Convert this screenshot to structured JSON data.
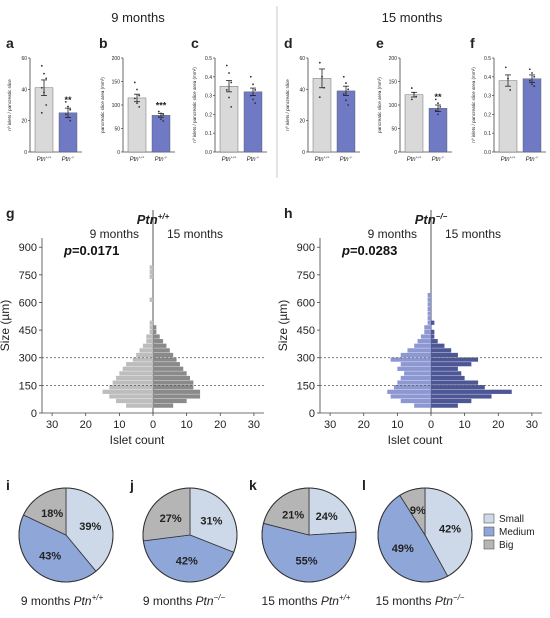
{
  "headers": {
    "left": "9 months",
    "right": "15 months"
  },
  "colors": {
    "wt_bar": "#d9d9d9",
    "ko_bar": "#6f79c4",
    "hist_light": "#bdbdbd",
    "hist_dark": "#8a8a8a",
    "hist_ko_light": "#8d97d2",
    "hist_ko_dark": "#4d5796",
    "pie_small": "#cdd9e8",
    "pie_medium": "#8ea6d8",
    "pie_big": "#b5b5b5"
  },
  "chart_data": [
    {
      "id": "a",
      "panel_label": "a",
      "type": "bar",
      "ylabel": "nº islets / pancreatic slice",
      "categories": [
        "Ptn+/+",
        "Ptn-/-"
      ],
      "cat_base": [
        "Ptn",
        "Ptn"
      ],
      "cat_sup": [
        "+/+",
        "-/-"
      ],
      "values": [
        41,
        25
      ],
      "errors": [
        5,
        3
      ],
      "ylim": [
        0,
        60
      ],
      "yticks": [
        0,
        20,
        40,
        60
      ],
      "points": [
        [
          55,
          50,
          47,
          41,
          38,
          30,
          25
        ],
        [
          32,
          29,
          27,
          24,
          22,
          20
        ]
      ],
      "significance": "**"
    },
    {
      "id": "b",
      "panel_label": "b",
      "type": "bar",
      "ylabel": "pancreatic slice area (mm²)",
      "categories": [
        "Ptn+/+",
        "Ptn-/-"
      ],
      "cat_base": [
        "Ptn",
        "Ptn"
      ],
      "cat_sup": [
        "+/+",
        "-/-"
      ],
      "values": [
        115,
        78
      ],
      "errors": [
        8,
        4
      ],
      "ylim": [
        0,
        200
      ],
      "yticks": [
        0,
        50,
        100,
        150,
        200
      ],
      "points": [
        [
          148,
          133,
          120,
          114,
          104,
          96
        ],
        [
          86,
          82,
          79,
          74,
          70,
          66
        ]
      ],
      "significance": "***"
    },
    {
      "id": "c",
      "panel_label": "c",
      "type": "bar",
      "ylabel": "nº islets / pancreatic slice area (mm²)",
      "categories": [
        "Ptn+/+",
        "Ptn-/-"
      ],
      "cat_base": [
        "Ptn",
        "Ptn"
      ],
      "cat_sup": [
        "+/+",
        "-/-"
      ],
      "values": [
        0.35,
        0.32
      ],
      "errors": [
        0.03,
        0.02
      ],
      "ylim": [
        0,
        0.5
      ],
      "yticks": [
        0.0,
        0.1,
        0.2,
        0.3,
        0.4,
        0.5
      ],
      "points": [
        [
          0.46,
          0.42,
          0.37,
          0.33,
          0.29,
          0.24
        ],
        [
          0.4,
          0.36,
          0.33,
          0.3,
          0.28,
          0.26
        ]
      ],
      "significance": ""
    },
    {
      "id": "d",
      "panel_label": "d",
      "type": "bar",
      "ylabel": "nº islets / pancreatic slice",
      "categories": [
        "Ptn+/+",
        "Ptn-/-"
      ],
      "cat_base": [
        "Ptn",
        "Ptn"
      ],
      "cat_sup": [
        "+/+",
        "-/-"
      ],
      "values": [
        47,
        39
      ],
      "errors": [
        6,
        3
      ],
      "ylim": [
        0,
        60
      ],
      "yticks": [
        0,
        20,
        40,
        60
      ],
      "points": [
        [
          57,
          48,
          41,
          35
        ],
        [
          48,
          44,
          40,
          37,
          33,
          30
        ]
      ],
      "significance": ""
    },
    {
      "id": "e",
      "panel_label": "e",
      "type": "bar",
      "ylabel": "pancreatic slice area (mm²)",
      "categories": [
        "Ptn+/+",
        "Ptn-/-"
      ],
      "cat_base": [
        "Ptn",
        "Ptn"
      ],
      "cat_sup": [
        "+/+",
        "-/-"
      ],
      "values": [
        122,
        93
      ],
      "errors": [
        5,
        7
      ],
      "ylim": [
        0,
        200
      ],
      "yticks": [
        0,
        50,
        100,
        150,
        200
      ],
      "points": [
        [
          136,
          126,
          118,
          112
        ],
        [
          112,
          104,
          96,
          88,
          80
        ]
      ],
      "significance": "**"
    },
    {
      "id": "f",
      "panel_label": "f",
      "type": "bar",
      "ylabel": "nº islets / pancreatic slice area (mm²)",
      "categories": [
        "Ptn+/+",
        "Ptn-/-"
      ],
      "cat_base": [
        "Ptn",
        "Ptn"
      ],
      "cat_sup": [
        "+/+",
        "-/-"
      ],
      "values": [
        0.38,
        0.39
      ],
      "errors": [
        0.03,
        0.02
      ],
      "ylim": [
        0,
        0.5
      ],
      "yticks": [
        0.0,
        0.1,
        0.2,
        0.3,
        0.4,
        0.5
      ],
      "points": [
        [
          0.45,
          0.39,
          0.33
        ],
        [
          0.44,
          0.42,
          0.4,
          0.38,
          0.36,
          0.35
        ]
      ],
      "significance": ""
    },
    {
      "id": "g",
      "panel_label": "g",
      "type": "bar",
      "orientation": "horizontal-mirrored",
      "title": "Ptn",
      "title_sup": "+/+",
      "left_label": "9 months",
      "right_label": "15 months",
      "pvalue_p": "p",
      "pvalue_rest": "=0.0171",
      "ylabel": "Size (µm)",
      "xlabel": "Islet count",
      "ylim": [
        0,
        950
      ],
      "yticks": [
        0,
        150,
        300,
        450,
        600,
        750,
        900
      ],
      "xlim": [
        -33,
        33
      ],
      "xtick_values": [
        -30,
        -20,
        -10,
        0,
        10,
        20,
        30
      ],
      "xtick_labels": [
        "30",
        "20",
        "10",
        "0",
        "10",
        "20",
        "30"
      ],
      "dashed_lines": [
        150,
        300
      ],
      "bin_centers": [
        40,
        65,
        90,
        115,
        140,
        165,
        190,
        215,
        240,
        265,
        290,
        315,
        340,
        365,
        390,
        415,
        440,
        465,
        490,
        515,
        540,
        565,
        590,
        615,
        640,
        665,
        690,
        715,
        740,
        765,
        790
      ],
      "series": [
        {
          "name": "9 months",
          "values": [
            8,
            11,
            13,
            15,
            13,
            12,
            11,
            10,
            9,
            8,
            6,
            5,
            4,
            3,
            2,
            2,
            1,
            1,
            1,
            0,
            0,
            0,
            0,
            1,
            0,
            0,
            0,
            0,
            1,
            1,
            1
          ]
        },
        {
          "name": "15 months",
          "values": [
            6,
            10,
            14,
            14,
            12,
            12,
            11,
            10,
            9,
            8,
            7,
            6,
            5,
            4,
            3,
            2,
            1,
            1,
            0,
            0,
            0,
            0,
            0,
            0,
            0,
            0,
            0,
            0,
            0,
            0,
            0
          ]
        }
      ]
    },
    {
      "id": "h",
      "panel_label": "h",
      "type": "bar",
      "orientation": "horizontal-mirrored",
      "title": "Ptn",
      "title_sup": "−/−",
      "left_label": "9 months",
      "right_label": "15 months",
      "pvalue_p": "p",
      "pvalue_rest": "=0.0283",
      "ylabel": "Size (µm)",
      "xlabel": "Islet count",
      "ylim": [
        0,
        950
      ],
      "yticks": [
        0,
        150,
        300,
        450,
        600,
        750,
        900
      ],
      "xlim": [
        -33,
        33
      ],
      "xtick_values": [
        -30,
        -20,
        -10,
        0,
        10,
        20,
        30
      ],
      "xtick_labels": [
        "30",
        "20",
        "10",
        "0",
        "10",
        "20",
        "30"
      ],
      "dashed_lines": [
        150,
        300
      ],
      "bin_centers": [
        40,
        65,
        90,
        115,
        140,
        165,
        190,
        215,
        240,
        265,
        290,
        315,
        340,
        365,
        390,
        415,
        440,
        465,
        490,
        515,
        540,
        565,
        590,
        615,
        640
      ],
      "series": [
        {
          "name": "9 months",
          "values": [
            5,
            9,
            12,
            13,
            11,
            10,
            9,
            8,
            10,
            9,
            12,
            9,
            7,
            5,
            4,
            3,
            2,
            2,
            1,
            1,
            1,
            1,
            1,
            1,
            1
          ]
        },
        {
          "name": "15 months",
          "values": [
            8,
            12,
            18,
            24,
            16,
            14,
            10,
            9,
            8,
            12,
            14,
            8,
            6,
            4,
            2,
            1,
            1,
            0,
            1,
            0,
            0,
            0,
            0,
            0,
            0
          ]
        }
      ]
    },
    {
      "id": "i",
      "panel_label": "i",
      "type": "pie",
      "caption_pre": "9 months ",
      "caption_base": "Ptn",
      "caption_sup": "+/+",
      "labels": [
        "Small",
        "Medium",
        "Big"
      ],
      "values": [
        39,
        43,
        18
      ]
    },
    {
      "id": "j",
      "panel_label": "j",
      "type": "pie",
      "caption_pre": "9 months ",
      "caption_base": "Ptn",
      "caption_sup": "−/−",
      "labels": [
        "Small",
        "Medium",
        "Big"
      ],
      "values": [
        31,
        42,
        27
      ]
    },
    {
      "id": "k",
      "panel_label": "k",
      "type": "pie",
      "caption_pre": "15 months ",
      "caption_base": "Ptn",
      "caption_sup": "+/+",
      "labels": [
        "Small",
        "Medium",
        "Big"
      ],
      "values": [
        24,
        55,
        21
      ]
    },
    {
      "id": "l",
      "panel_label": "l",
      "type": "pie",
      "caption_pre": "15 months ",
      "caption_base": "Ptn",
      "caption_sup": "−/−",
      "labels": [
        "Small",
        "Medium",
        "Big"
      ],
      "values": [
        42,
        49,
        9
      ]
    }
  ],
  "pie_legend": [
    "Small",
    "Medium",
    "Big"
  ]
}
